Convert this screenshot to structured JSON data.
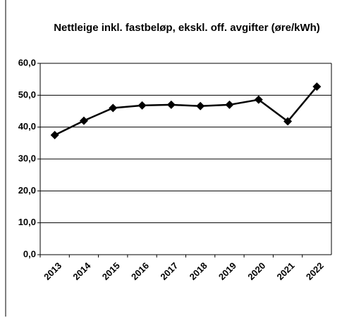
{
  "chart_data": {
    "type": "line",
    "title": "Nettleige inkl. fastbeløp, ekskl. off. avgifter (øre/kWh)",
    "categories": [
      "2013",
      "2014",
      "2015",
      "2016",
      "2017",
      "2018",
      "2019",
      "2020",
      "2021",
      "2022"
    ],
    "values": [
      37.5,
      42,
      46,
      46.8,
      47,
      46.6,
      47,
      48.6,
      41.8,
      52.7
    ],
    "color": "#000000",
    "ylim": [
      0,
      60
    ],
    "yticks": [
      {
        "value": 0,
        "label": "0,0"
      },
      {
        "value": 10,
        "label": "10,0"
      },
      {
        "value": 20,
        "label": "20,0"
      },
      {
        "value": 30,
        "label": "30,0"
      },
      {
        "value": 40,
        "label": "40,0"
      },
      {
        "value": 50,
        "label": "50,0"
      },
      {
        "value": 60,
        "label": "60,0"
      }
    ],
    "grid": true
  }
}
